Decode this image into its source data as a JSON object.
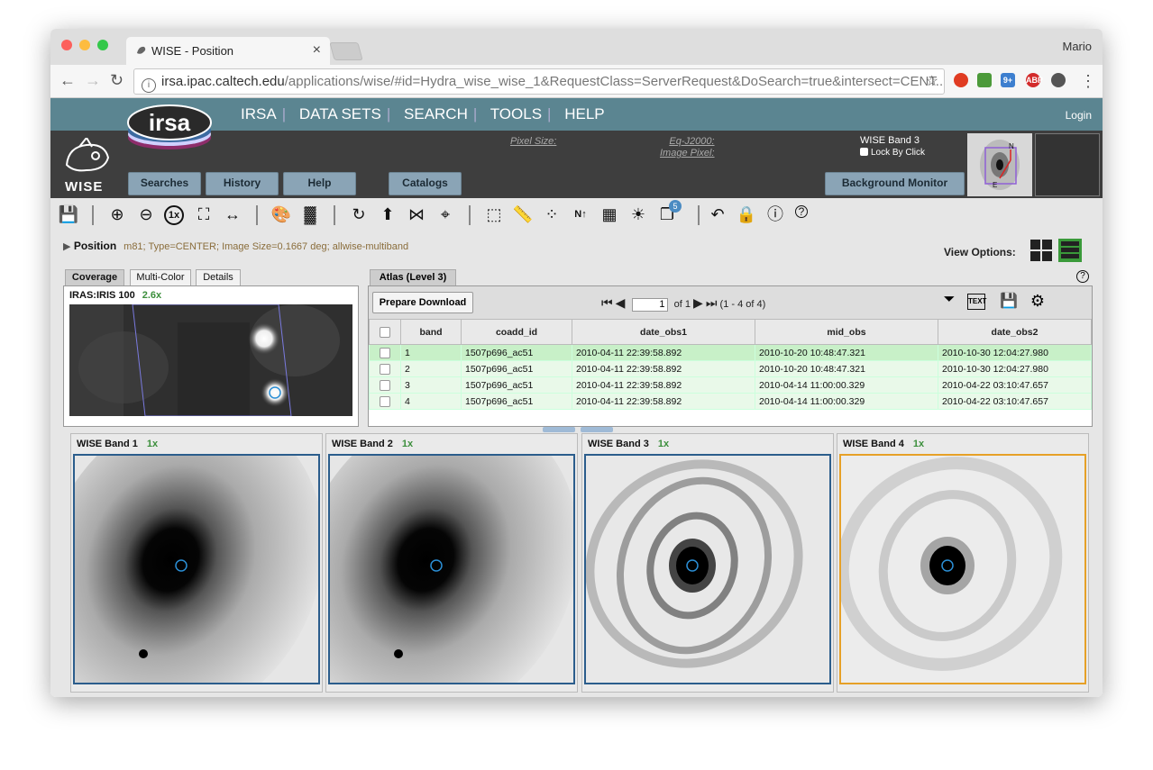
{
  "browser": {
    "tab_title": "WISE - Position",
    "tab_close": "×",
    "user": "Mario",
    "url_host": "irsa.ipac.caltech.edu",
    "url_path": "/applications/wise/#id=Hydra_wise_wise_1&RequestClass=ServerRequest&DoSearch=true&intersect=CENT...",
    "back": "←",
    "forward": "→",
    "reload": "↻",
    "star": "☆",
    "ext_badge": "9+",
    "ext_abp": "ABP",
    "more": "⋮"
  },
  "header": {
    "logo_text": "irsa",
    "mission": "WISE",
    "menu": [
      "IRSA",
      "DATA SETS",
      "SEARCH",
      "TOOLS",
      "HELP"
    ],
    "login": "Login",
    "pixel_size": "Pixel Size:",
    "eq_j2000": "Eq-J2000:",
    "image_pixel": "Image Pixel:",
    "band_title": "WISE Band 3",
    "lock_by_click": "Lock By Click",
    "buttons": {
      "searches": "Searches",
      "history": "History",
      "help": "Help",
      "catalogs": "Catalogs",
      "background_monitor": "Background Monitor"
    },
    "thumb_n": "N",
    "thumb_e": "E"
  },
  "toolbar": {
    "layers_count": "5",
    "help": "?"
  },
  "position": {
    "label": "Position",
    "details": "m81; Type=CENTER; Image Size=0.1667 deg; allwise-multiband"
  },
  "view_options": "View Options:",
  "left_tabs": [
    "Coverage",
    "Multi-Color",
    "Details"
  ],
  "coverage": {
    "title": "IRAS:IRIS 100",
    "zoom": "2.6x"
  },
  "atlas": {
    "tab": "Atlas (Level 3)",
    "help": "?",
    "prepare_download": "Prepare Download",
    "page": "1",
    "of": "of",
    "total_pages": "1",
    "range": "(1 - 4 of 4)",
    "columns": [
      "band",
      "coadd_id",
      "date_obs1",
      "mid_obs",
      "date_obs2"
    ],
    "rows": [
      [
        "1",
        "1507p696_ac51",
        "2010-04-11 22:39:58.892",
        "2010-10-20 10:48:47.321",
        "2010-10-30 12:04:27.980"
      ],
      [
        "2",
        "1507p696_ac51",
        "2010-04-11 22:39:58.892",
        "2010-10-20 10:48:47.321",
        "2010-10-30 12:04:27.980"
      ],
      [
        "3",
        "1507p696_ac51",
        "2010-04-11 22:39:58.892",
        "2010-04-14 11:00:00.329",
        "2010-04-22 03:10:47.657"
      ],
      [
        "4",
        "1507p696_ac51",
        "2010-04-11 22:39:58.892",
        "2010-04-14 11:00:00.329",
        "2010-04-22 03:10:47.657"
      ]
    ]
  },
  "bands": [
    {
      "title": "WISE Band 1",
      "zoom": "1x"
    },
    {
      "title": "WISE Band 2",
      "zoom": "1x"
    },
    {
      "title": "WISE Band 3",
      "zoom": "1x"
    },
    {
      "title": "WISE Band 4",
      "zoom": "1x"
    }
  ],
  "colors": {
    "banner": "#5b8591",
    "dark_header": "#3e3e3e",
    "selected_row": "#c8f0c8",
    "frame_blue": "#2b5d8c",
    "frame_orange": "#e6a027"
  }
}
